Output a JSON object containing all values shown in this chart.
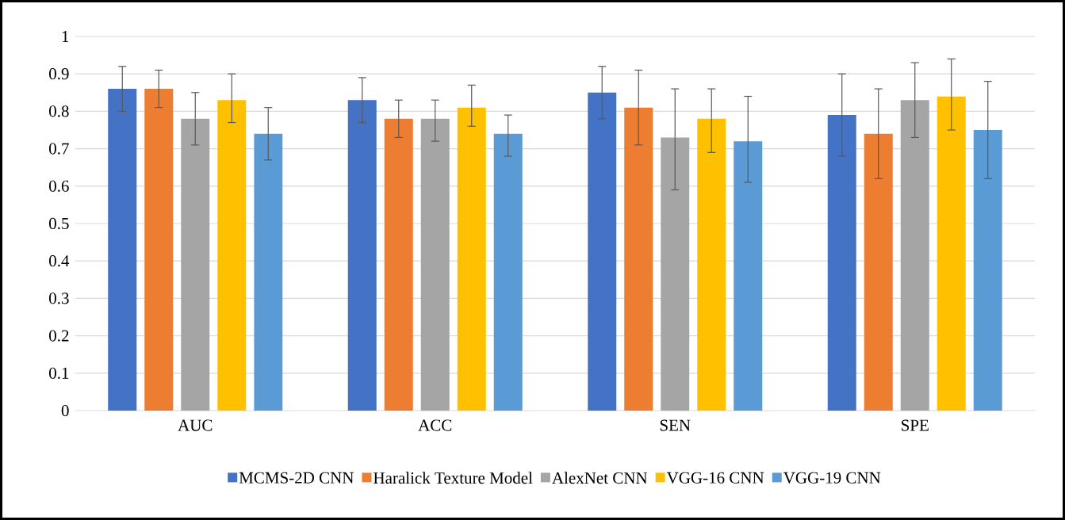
{
  "chart_data": {
    "type": "bar",
    "categories": [
      "AUC",
      "ACC",
      "SEN",
      "SPE"
    ],
    "series": [
      {
        "name": "MCMS-2D CNN",
        "color": "#4472c4",
        "values": [
          0.86,
          0.83,
          0.85,
          0.79
        ],
        "errors": [
          [
            0.8,
            0.92
          ],
          [
            0.77,
            0.89
          ],
          [
            0.78,
            0.92
          ],
          [
            0.68,
            0.9
          ]
        ]
      },
      {
        "name": "Haralick Texture Model",
        "color": "#ed7d31",
        "values": [
          0.86,
          0.78,
          0.81,
          0.74
        ],
        "errors": [
          [
            0.81,
            0.91
          ],
          [
            0.73,
            0.83
          ],
          [
            0.71,
            0.91
          ],
          [
            0.62,
            0.86
          ]
        ]
      },
      {
        "name": "AlexNet CNN",
        "color": "#a5a5a5",
        "values": [
          0.78,
          0.78,
          0.73,
          0.83
        ],
        "errors": [
          [
            0.71,
            0.85
          ],
          [
            0.72,
            0.83
          ],
          [
            0.59,
            0.86
          ],
          [
            0.73,
            0.93
          ]
        ]
      },
      {
        "name": "VGG-16 CNN",
        "color": "#ffc000",
        "values": [
          0.83,
          0.81,
          0.78,
          0.84
        ],
        "errors": [
          [
            0.77,
            0.9
          ],
          [
            0.76,
            0.87
          ],
          [
            0.69,
            0.86
          ],
          [
            0.75,
            0.94
          ]
        ]
      },
      {
        "name": "VGG-19 CNN",
        "color": "#5b9bd5",
        "values": [
          0.74,
          0.74,
          0.72,
          0.75
        ],
        "errors": [
          [
            0.67,
            0.81
          ],
          [
            0.68,
            0.79
          ],
          [
            0.61,
            0.84
          ],
          [
            0.62,
            0.88
          ]
        ]
      }
    ],
    "ylim": [
      0,
      1
    ],
    "yticks": [
      0,
      0.1,
      0.2,
      0.3,
      0.4,
      0.5,
      0.6,
      0.7,
      0.8,
      0.9,
      1
    ],
    "grid": "y",
    "legend": "bottom"
  }
}
